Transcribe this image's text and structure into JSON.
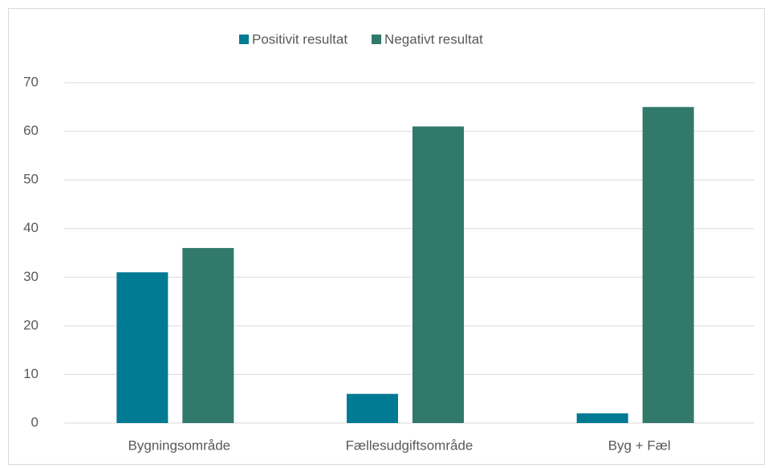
{
  "chart_data": {
    "type": "bar",
    "categories": [
      "Bygningsområde",
      "Fællesudgiftsområde",
      "Byg + Fæl"
    ],
    "series": [
      {
        "name": "Positivit resultat",
        "color": "#017a94",
        "values": [
          31,
          6,
          2
        ]
      },
      {
        "name": "Negativt resultat",
        "color": "#30796b",
        "values": [
          36,
          61,
          65
        ]
      }
    ],
    "ylim": [
      0,
      70
    ],
    "yticks": [
      0,
      10,
      20,
      30,
      40,
      50,
      60,
      70
    ],
    "grid": true,
    "legend": "top"
  }
}
